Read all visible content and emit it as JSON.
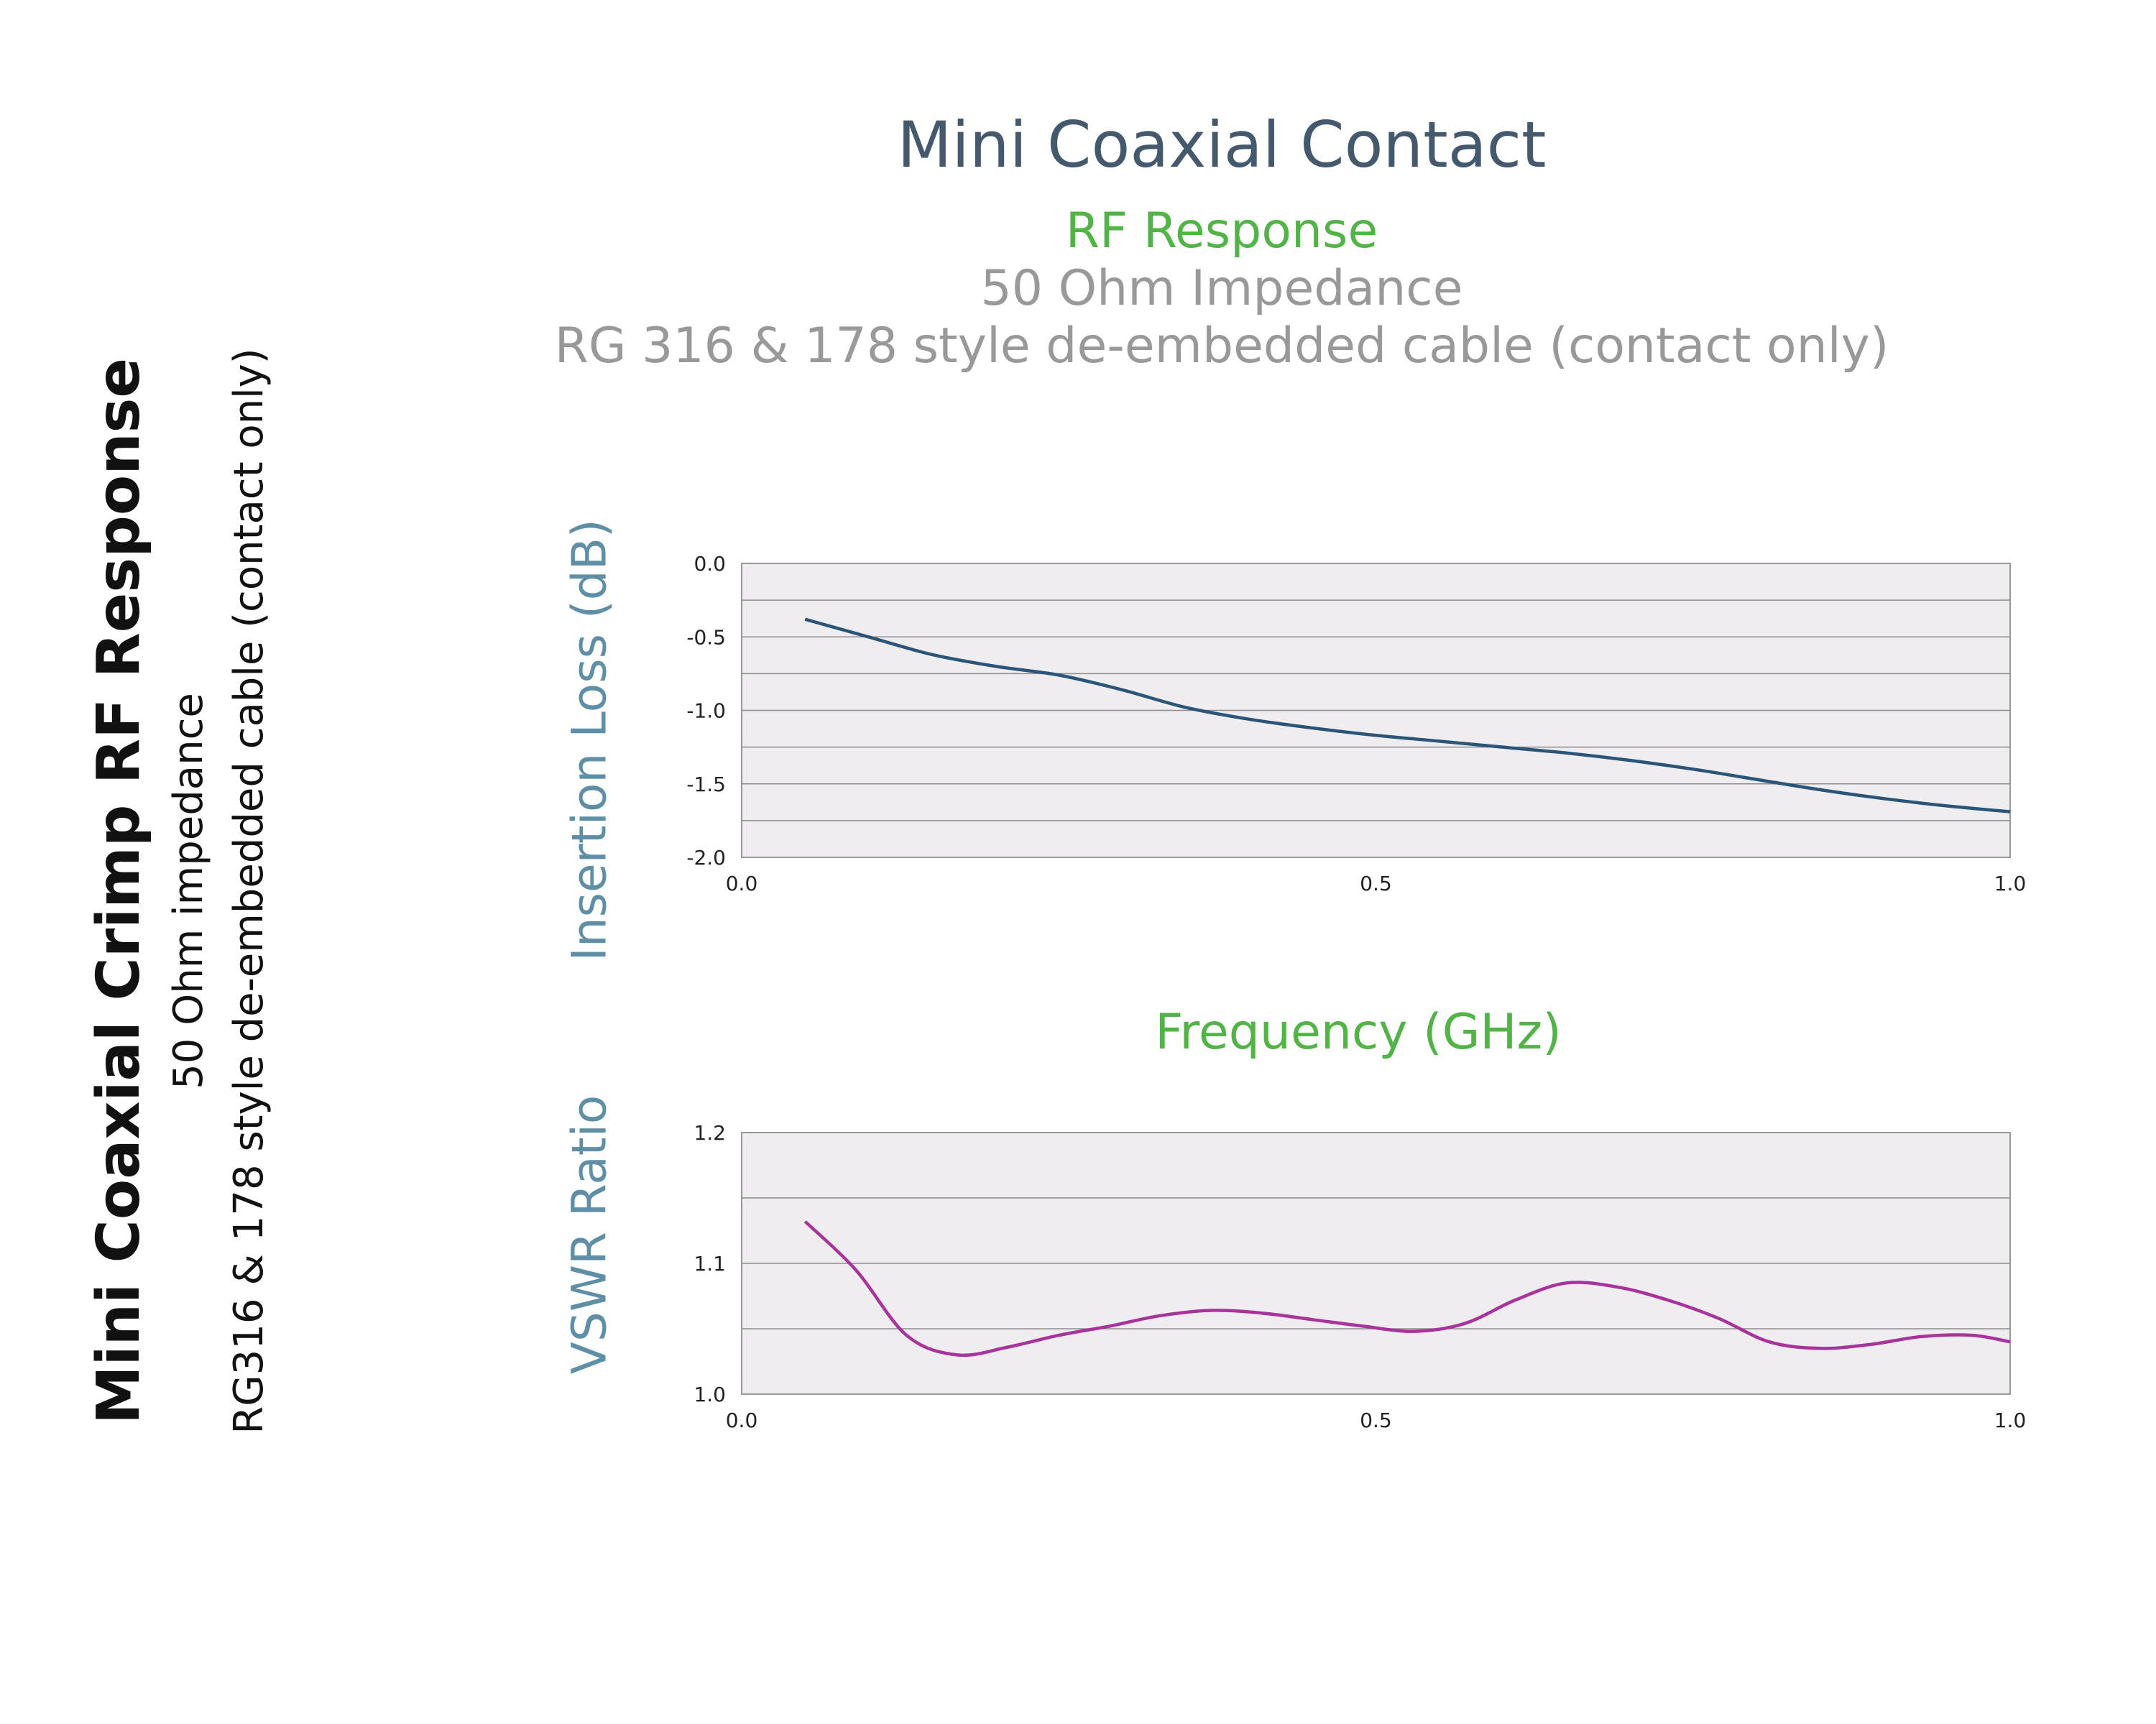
{
  "side": {
    "title": "Mini Coaxial Crimp RF Response",
    "line1": "50 Ohm impedance",
    "line2": "RG316 & 178 style de-embedded cable (contact only)"
  },
  "header": {
    "title": "Mini Coaxial Contact",
    "subtitle": "RF Response",
    "impedance": "50 Ohm Impedance",
    "cable": "RG 316 & 178 style de-embedded cable (contact only)"
  },
  "colors": {
    "title": "#44596e",
    "accent_green": "#52b447",
    "gray_text": "#999999",
    "axis_label": "#5f8fa6",
    "plot_bg": "#efedef",
    "insertion_line": "#2a5578",
    "vswr_line": "#a8339a"
  },
  "chart_data": [
    {
      "type": "line",
      "title": "",
      "xlabel": "Frequency (GHz)",
      "ylabel": "Insertion Loss (dB)",
      "xlim": [
        0.0,
        1.0
      ],
      "ylim": [
        -2.0,
        0.0
      ],
      "xticks": [
        "0.0",
        "0.5",
        "1.0"
      ],
      "yticks": [
        "0.0",
        "-0.5",
        "-1.0",
        "-1.5",
        "-2.0"
      ],
      "grid": true,
      "series": [
        {
          "x": [
            0.05,
            0.1,
            0.15,
            0.2,
            0.25,
            0.3,
            0.35,
            0.4,
            0.45,
            0.5,
            0.55,
            0.6,
            0.65,
            0.7,
            0.75,
            0.8,
            0.85,
            0.9,
            0.95,
            1.0
          ],
          "y": [
            -0.38,
            -0.5,
            -0.62,
            -0.7,
            -0.76,
            -0.86,
            -0.98,
            -1.06,
            -1.12,
            -1.17,
            -1.21,
            -1.25,
            -1.29,
            -1.34,
            -1.4,
            -1.47,
            -1.54,
            -1.6,
            -1.65,
            -1.69
          ]
        }
      ]
    },
    {
      "type": "line",
      "title": "",
      "xlabel": "Frequency (GHz)",
      "ylabel": "VSWR Ratio",
      "xlim": [
        0.0,
        1.0
      ],
      "ylim": [
        1.0,
        1.2
      ],
      "xticks": [
        "0.0",
        "0.5",
        "1.0"
      ],
      "yticks": [
        "1.2",
        "1.1",
        "1.0"
      ],
      "grid": true,
      "series": [
        {
          "x": [
            0.05,
            0.09,
            0.13,
            0.17,
            0.21,
            0.25,
            0.29,
            0.33,
            0.37,
            0.41,
            0.45,
            0.49,
            0.53,
            0.57,
            0.61,
            0.65,
            0.69,
            0.73,
            0.77,
            0.81,
            0.85,
            0.89,
            0.93,
            0.97,
            1.0
          ],
          "y": [
            1.132,
            1.095,
            1.045,
            1.03,
            1.036,
            1.045,
            1.052,
            1.06,
            1.064,
            1.062,
            1.057,
            1.052,
            1.048,
            1.054,
            1.072,
            1.085,
            1.082,
            1.072,
            1.058,
            1.04,
            1.035,
            1.038,
            1.044,
            1.045,
            1.04
          ]
        }
      ]
    }
  ]
}
